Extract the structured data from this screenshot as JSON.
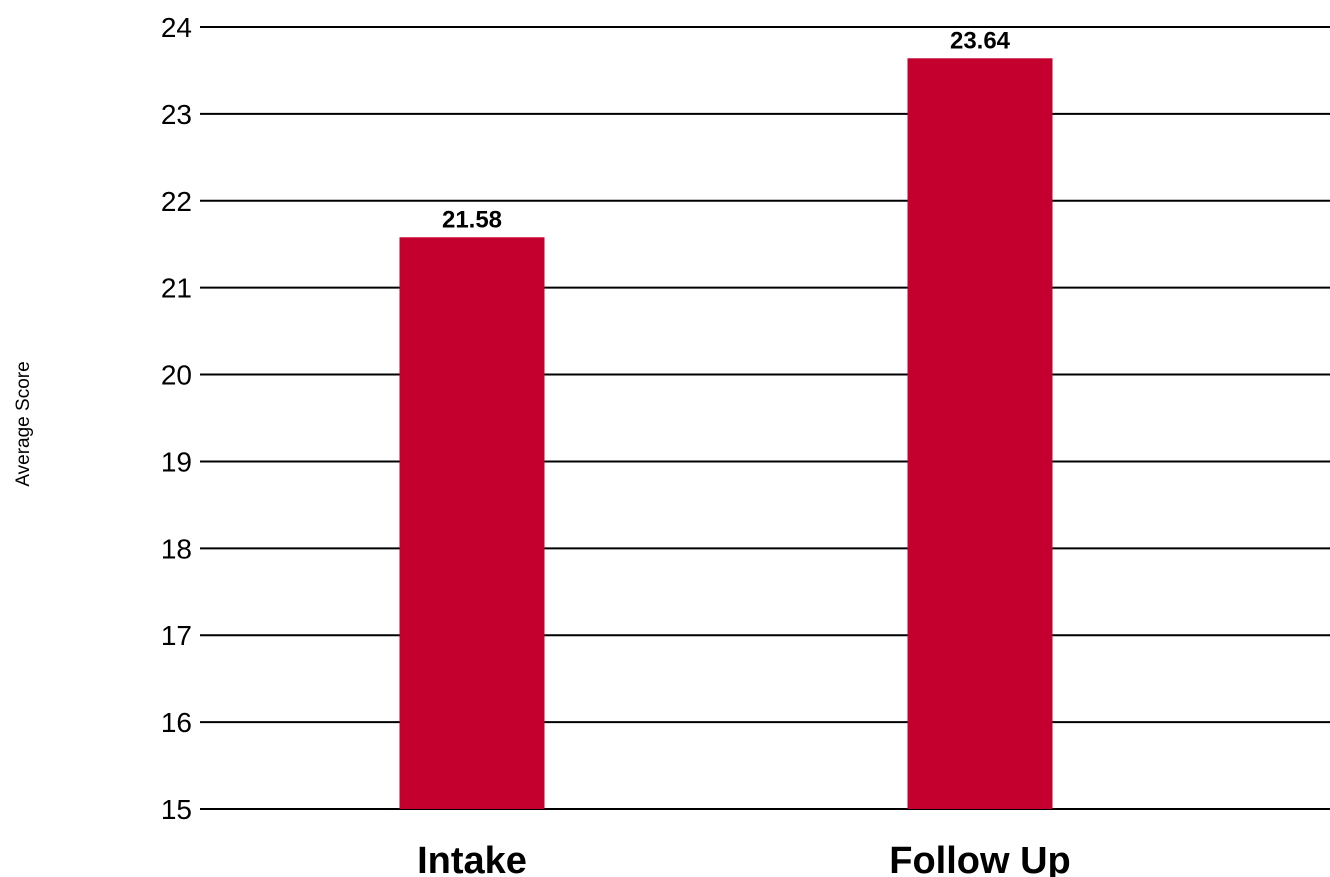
{
  "chart_data": {
    "type": "bar",
    "categories": [
      "Intake",
      "Follow Up"
    ],
    "values": [
      21.58,
      23.64
    ],
    "value_labels": [
      "21.58",
      "23.64"
    ],
    "xlabel": "",
    "ylabel": "Average Score",
    "ylim": [
      15,
      24
    ],
    "yticks": [
      15,
      16,
      17,
      18,
      19,
      20,
      21,
      22,
      23,
      24
    ],
    "grid": true,
    "legend": "none",
    "bar_color": "#C4002F"
  }
}
